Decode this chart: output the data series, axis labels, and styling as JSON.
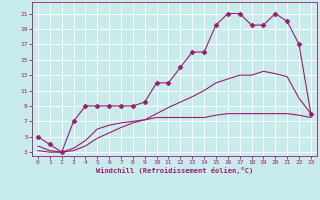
{
  "background_color": "#c8ecec",
  "grid_color": "#ffffff",
  "line_color": "#9b1b6e",
  "xlabel": "Windchill (Refroidissement éolien,°C)",
  "xlim": [
    -0.5,
    23.5
  ],
  "ylim": [
    2.5,
    22.5
  ],
  "yticks": [
    3,
    5,
    7,
    9,
    11,
    13,
    15,
    17,
    19,
    21
  ],
  "xticks": [
    0,
    1,
    2,
    3,
    4,
    5,
    6,
    7,
    8,
    9,
    10,
    11,
    12,
    13,
    14,
    15,
    16,
    17,
    18,
    19,
    20,
    21,
    22,
    23
  ],
  "series": [
    {
      "x": [
        0,
        1,
        2,
        3,
        4,
        5,
        6,
        7,
        8,
        9,
        10,
        11,
        12,
        13,
        14,
        15,
        16,
        17,
        18,
        19,
        20,
        21,
        22,
        23
      ],
      "y": [
        5,
        4,
        3,
        7,
        9,
        9,
        9,
        9,
        9,
        9.5,
        12,
        12,
        14,
        16,
        16,
        19.5,
        21,
        21,
        19.5,
        19.5,
        21,
        20,
        17,
        8
      ],
      "marker": "D",
      "markersize": 2.5,
      "linewidth": 0.8,
      "has_marker": true
    },
    {
      "x": [
        0,
        1,
        2,
        3,
        4,
        5,
        6,
        7,
        8,
        9,
        10,
        11,
        12,
        13,
        14,
        15,
        16,
        17,
        18,
        19,
        20,
        21,
        22,
        23
      ],
      "y": [
        3.8,
        3.2,
        3.0,
        3.5,
        4.5,
        6.0,
        6.5,
        6.8,
        7.0,
        7.2,
        7.5,
        7.5,
        7.5,
        7.5,
        7.5,
        7.8,
        8.0,
        8.0,
        8.0,
        8.0,
        8.0,
        8.0,
        7.8,
        7.5
      ],
      "marker": null,
      "markersize": 0,
      "linewidth": 0.8,
      "has_marker": false
    },
    {
      "x": [
        0,
        1,
        2,
        3,
        4,
        5,
        6,
        7,
        8,
        9,
        10,
        11,
        12,
        13,
        14,
        15,
        16,
        17,
        18,
        19,
        20,
        21,
        22,
        23
      ],
      "y": [
        3.2,
        3.0,
        3.0,
        3.2,
        3.8,
        4.8,
        5.5,
        6.2,
        6.8,
        7.2,
        8.0,
        8.8,
        9.5,
        10.2,
        11.0,
        12.0,
        12.5,
        13.0,
        13.0,
        13.5,
        13.2,
        12.8,
        10.0,
        8.0
      ],
      "marker": null,
      "markersize": 0,
      "linewidth": 0.8,
      "has_marker": false
    }
  ]
}
